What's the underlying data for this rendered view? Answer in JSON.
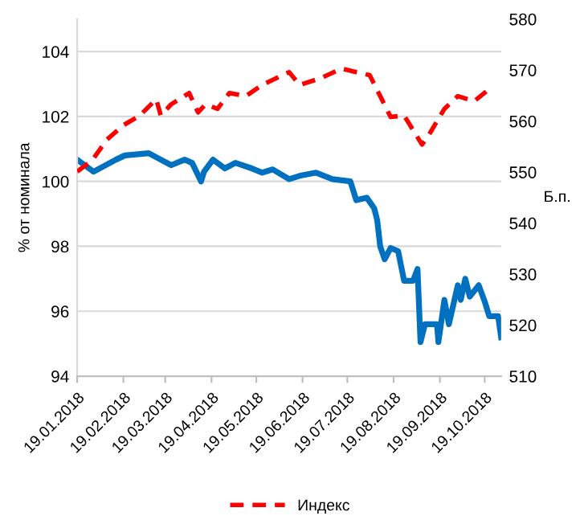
{
  "chart_data": {
    "type": "line",
    "ylabel": "% от номинала",
    "y2label": "Б.п.",
    "xlim": [
      "2018-01-19",
      "2018-10-30"
    ],
    "xticks": [
      {
        "value": "2018-01-19",
        "label": "19.01.2018"
      },
      {
        "value": "2018-02-19",
        "label": "19.02.2018"
      },
      {
        "value": "2018-03-19",
        "label": "19.03.2018"
      },
      {
        "value": "2018-04-19",
        "label": "19.04.2018"
      },
      {
        "value": "2018-05-19",
        "label": "19.05.2018"
      },
      {
        "value": "2018-06-19",
        "label": "19.06.2018"
      },
      {
        "value": "2018-07-19",
        "label": "19.07.2018"
      },
      {
        "value": "2018-08-19",
        "label": "19.08.2018"
      },
      {
        "value": "2018-09-19",
        "label": "19.09.2018"
      },
      {
        "value": "2018-10-19",
        "label": "19.10.2018"
      }
    ],
    "ylim": [
      94,
      105
    ],
    "yticks": [
      94,
      96,
      98,
      100,
      102,
      104
    ],
    "y2lim": [
      510,
      580
    ],
    "y2ticks": [
      510,
      520,
      530,
      540,
      550,
      560,
      570,
      580
    ],
    "grid": "y",
    "legend": "bottom",
    "series": [
      {
        "color": "#0070c0",
        "line_style": "solid",
        "x": [
          "2018-01-19",
          "2018-01-30",
          "2018-02-14",
          "2018-02-20",
          "2018-03-08",
          "2018-03-16",
          "2018-03-23",
          "2018-04-01",
          "2018-04-06",
          "2018-04-12",
          "2018-04-14",
          "2018-04-20",
          "2018-04-28",
          "2018-05-05",
          "2018-05-16",
          "2018-05-23",
          "2018-05-30",
          "2018-06-10",
          "2018-06-17",
          "2018-06-28",
          "2018-07-09",
          "2018-07-21",
          "2018-07-25",
          "2018-08-01",
          "2018-08-06",
          "2018-08-08",
          "2018-08-10",
          "2018-08-13",
          "2018-08-17",
          "2018-08-22",
          "2018-08-26",
          "2018-09-01",
          "2018-09-04",
          "2018-09-06",
          "2018-09-09",
          "2018-09-17",
          "2018-09-18",
          "2018-09-22",
          "2018-09-25",
          "2018-10-01",
          "2018-10-03",
          "2018-10-06",
          "2018-10-09",
          "2018-10-15",
          "2018-10-19",
          "2018-10-22",
          "2018-10-28",
          "2018-10-30"
        ],
        "values": [
          100.67,
          100.3,
          100.67,
          100.8,
          100.87,
          100.67,
          100.5,
          100.67,
          100.57,
          100.0,
          100.3,
          100.67,
          100.4,
          100.57,
          100.4,
          100.27,
          100.37,
          100.07,
          100.17,
          100.27,
          100.07,
          100.0,
          99.42,
          99.5,
          99.17,
          98.8,
          98.0,
          97.6,
          97.95,
          97.85,
          96.94,
          96.94,
          97.3,
          95.05,
          95.6,
          95.6,
          95.05,
          96.35,
          95.6,
          96.8,
          96.35,
          97.0,
          96.45,
          96.8,
          96.3,
          95.85,
          95.85,
          95.2
        ]
      },
      {
        "name": "Индекс",
        "color": "#ff0000",
        "line_style": "dashed",
        "axis": "y2",
        "x": [
          "2018-01-19",
          "2018-01-29",
          "2018-02-08",
          "2018-02-19",
          "2018-03-02",
          "2018-03-13",
          "2018-03-16",
          "2018-03-23",
          "2018-04-04",
          "2018-04-10",
          "2018-04-15",
          "2018-04-23",
          "2018-05-01",
          "2018-05-12",
          "2018-05-23",
          "2018-06-10",
          "2018-06-17",
          "2018-07-01",
          "2018-07-15",
          "2018-07-25",
          "2018-08-03",
          "2018-08-10",
          "2018-08-17",
          "2018-08-26",
          "2018-09-07",
          "2018-09-11",
          "2018-09-22",
          "2018-10-01",
          "2018-10-12",
          "2018-10-20",
          "2018-10-24"
        ],
        "values": [
          550.1,
          552.3,
          556.4,
          559.2,
          561.1,
          564.3,
          561.1,
          563.3,
          565.5,
          561.7,
          563.3,
          562.4,
          565.5,
          564.9,
          567.1,
          569.6,
          567.1,
          568.4,
          570.3,
          569.6,
          569.0,
          564.9,
          560.8,
          561.1,
          555.4,
          557.0,
          562.4,
          564.9,
          563.9,
          565.8,
          565.8
        ]
      }
    ]
  }
}
